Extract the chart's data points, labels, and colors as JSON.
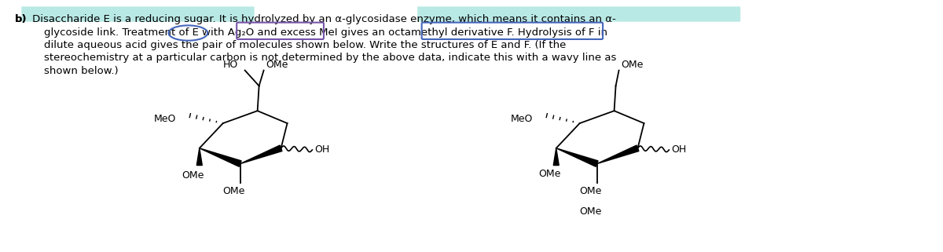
{
  "background_color": "#ffffff",
  "font_size": 9.5,
  "fig_width": 12.0,
  "fig_height": 3.21,
  "highlight_teal": "#80d8d0",
  "line1": "b)  Disaccharide E is a reducing sugar. It is hydrolyzed by an α-glycosidase enzyme, which means it contains an α-",
  "line2": "glycoside link. Treatment of E with Ag₂O and excess MeI gives an octamethyl derivative F. Hydrolysis of F in",
  "line3": "dilute aqueous acid gives the pair of molecules shown below. Write the structures of E and F. (If the",
  "line4": "stereochemistry at a particular carbon is not determined by the above data, indicate this with a wavy line as",
  "line5": "shown below.)"
}
